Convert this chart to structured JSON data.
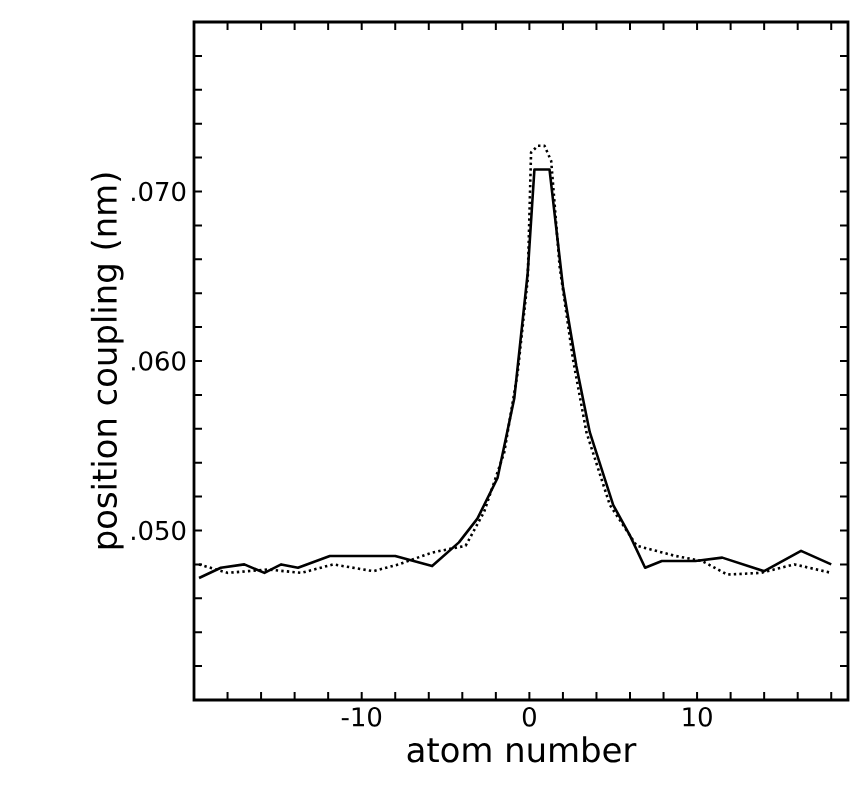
{
  "chart_data": {
    "type": "line",
    "xlabel": "atom number",
    "ylabel": "position coupling (nm)",
    "xlim": [
      -20,
      19
    ],
    "ylim": [
      0.04,
      0.08
    ],
    "xticks": [
      {
        "value": -18,
        "label": null
      },
      {
        "value": -16,
        "label": null
      },
      {
        "value": -14,
        "label": null
      },
      {
        "value": -12,
        "label": null
      },
      {
        "value": -10,
        "label": "-10"
      },
      {
        "value": -8,
        "label": null
      },
      {
        "value": -6,
        "label": null
      },
      {
        "value": -4,
        "label": null
      },
      {
        "value": -2,
        "label": null
      },
      {
        "value": 0,
        "label": "0"
      },
      {
        "value": 2,
        "label": null
      },
      {
        "value": 4,
        "label": null
      },
      {
        "value": 6,
        "label": null
      },
      {
        "value": 8,
        "label": null
      },
      {
        "value": 10,
        "label": "10"
      },
      {
        "value": 12,
        "label": null
      },
      {
        "value": 14,
        "label": null
      },
      {
        "value": 16,
        "label": null
      },
      {
        "value": 18,
        "label": null
      }
    ],
    "yticks": [
      {
        "value": 0.042,
        "label": null
      },
      {
        "value": 0.044,
        "label": null
      },
      {
        "value": 0.046,
        "label": null
      },
      {
        "value": 0.048,
        "label": null
      },
      {
        "value": 0.05,
        "label": ".050"
      },
      {
        "value": 0.052,
        "label": null
      },
      {
        "value": 0.054,
        "label": null
      },
      {
        "value": 0.056,
        "label": null
      },
      {
        "value": 0.058,
        "label": null
      },
      {
        "value": 0.06,
        "label": ".060"
      },
      {
        "value": 0.062,
        "label": null
      },
      {
        "value": 0.064,
        "label": null
      },
      {
        "value": 0.066,
        "label": null
      },
      {
        "value": 0.068,
        "label": null
      },
      {
        "value": 0.07,
        "label": ".070"
      },
      {
        "value": 0.072,
        "label": null
      },
      {
        "value": 0.074,
        "label": null
      },
      {
        "value": 0.076,
        "label": null
      },
      {
        "value": 0.078,
        "label": null
      }
    ],
    "grid": false,
    "marker": "none",
    "series": [
      {
        "color": "#000000",
        "line_style": "solid",
        "x": [
          -19.7,
          -18.4,
          -17,
          -15.8,
          -14.8,
          -13.8,
          -11.9,
          -8,
          -5.8,
          -4.2,
          -3.1,
          -1.9,
          -0.9,
          -0.1,
          0.3,
          1.2,
          2.0,
          2.8,
          3.6,
          5.0,
          6.0,
          6.9,
          7.9,
          9.9,
          11.5,
          14,
          16.2,
          18
        ],
        "values": [
          0.0472,
          0.0478,
          0.048,
          0.0475,
          0.048,
          0.0478,
          0.0485,
          0.0485,
          0.0479,
          0.0493,
          0.0507,
          0.0531,
          0.0578,
          0.0652,
          0.0713,
          0.0713,
          0.0644,
          0.0597,
          0.0558,
          0.0515,
          0.0497,
          0.0478,
          0.0482,
          0.0482,
          0.0484,
          0.0476,
          0.0488,
          0.048
        ]
      },
      {
        "color": "#000000",
        "line_style": "dotted",
        "x": [
          -19.7,
          -18,
          -15.6,
          -13.6,
          -11.7,
          -9.3,
          -7.8,
          -5.8,
          -3.8,
          -2.7,
          -1.5,
          -0.7,
          -0.1,
          0.1,
          0.5,
          0.9,
          1.3,
          1.8,
          2.6,
          3.4,
          4.8,
          6.4,
          8.7,
          10.3,
          11.8,
          13.8,
          15.8,
          18
        ],
        "values": [
          0.048,
          0.0475,
          0.0477,
          0.0475,
          0.048,
          0.0476,
          0.048,
          0.0487,
          0.0491,
          0.0511,
          0.0546,
          0.0593,
          0.0648,
          0.0723,
          0.0727,
          0.0727,
          0.0718,
          0.0656,
          0.0601,
          0.0558,
          0.0515,
          0.0491,
          0.0485,
          0.0482,
          0.0474,
          0.0475,
          0.048,
          0.0475
        ]
      }
    ]
  }
}
